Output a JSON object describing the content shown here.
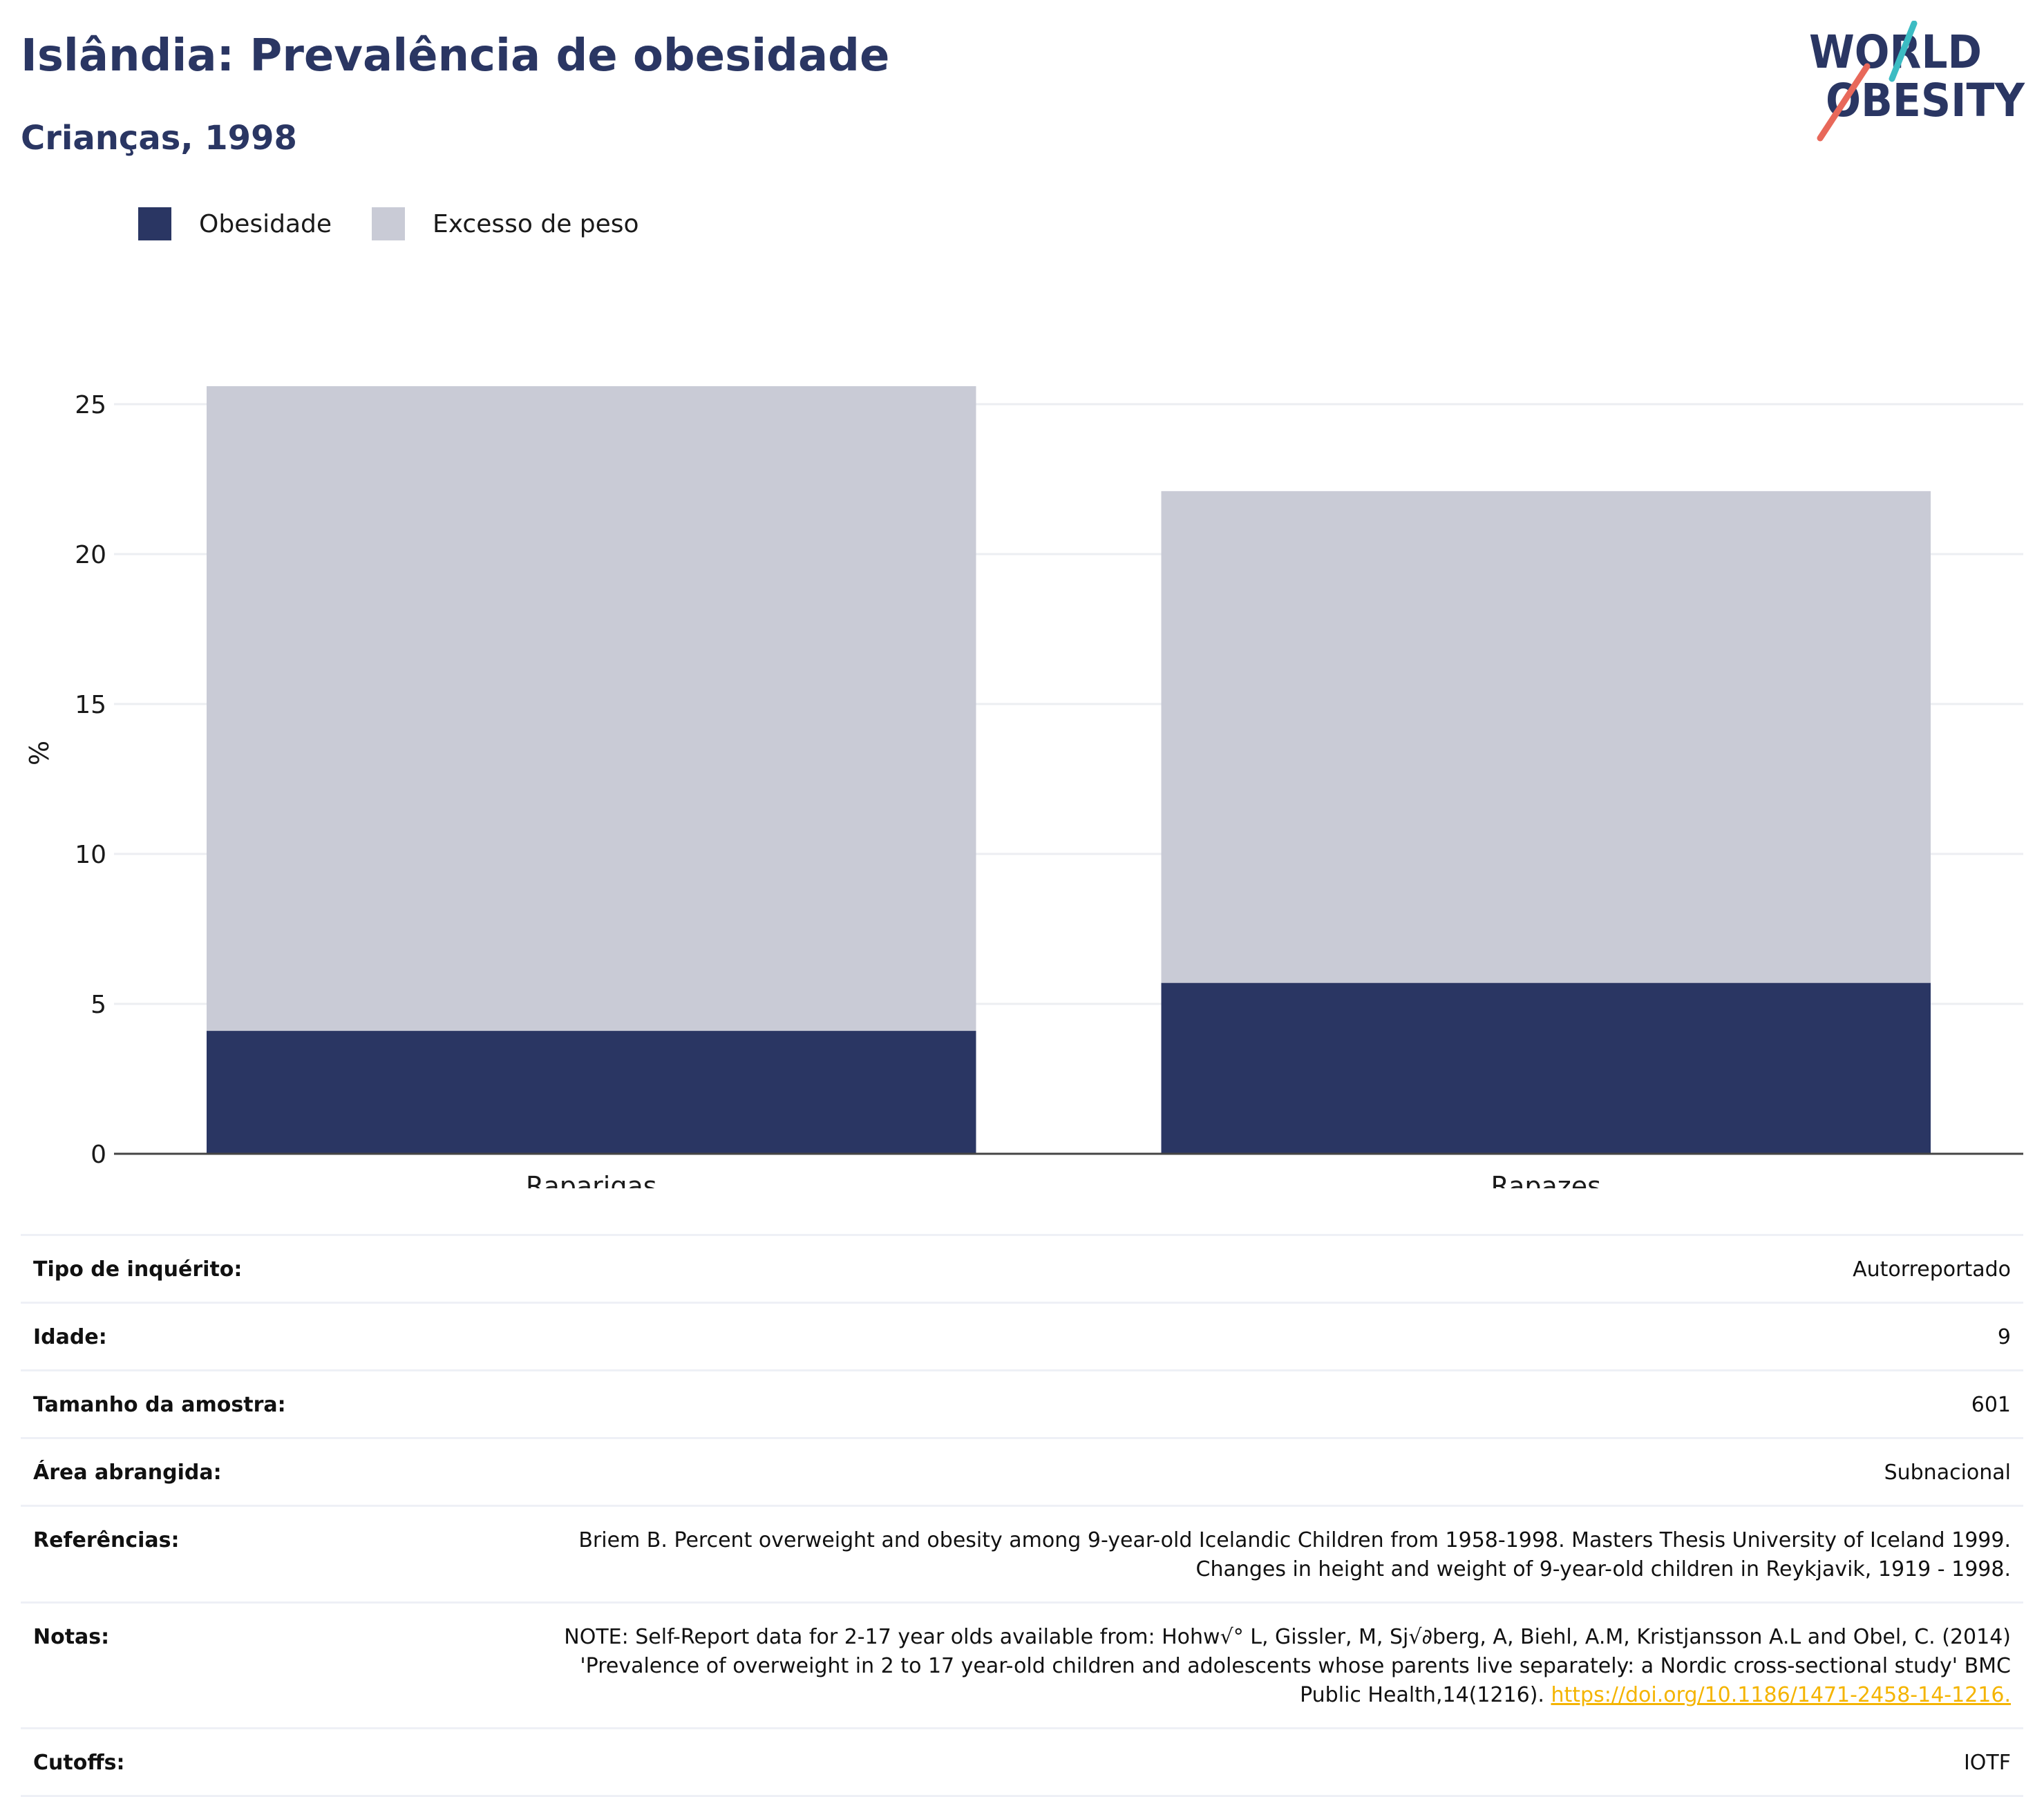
{
  "header": {
    "title": "Islândia: Prevalência de obesidade",
    "subtitle": "Crianças, 1998"
  },
  "logo": {
    "line1": "WORLD",
    "line2": "OBESITY"
  },
  "colors": {
    "obesity": "#2a3663",
    "overweight": "#c9cbd6",
    "title": "#2a3663",
    "link": "#f4b400",
    "logo_teal": "#3cbcc3",
    "logo_coral": "#e8685a"
  },
  "chart_data": {
    "type": "bar",
    "stacked": true,
    "categories": [
      "Raparigas",
      "Rapazes"
    ],
    "series": [
      {
        "name": "Obesidade",
        "values": [
          4.1,
          5.7
        ],
        "color": "#2a3663"
      },
      {
        "name": "Excesso de peso",
        "values": [
          21.5,
          16.4
        ],
        "color": "#c9cbd6"
      }
    ],
    "totals": [
      25.6,
      22.1
    ],
    "ylabel": "%",
    "xlabel": "",
    "ylim": [
      0,
      27
    ],
    "yticks": [
      0,
      5,
      10,
      15,
      20,
      25
    ],
    "grid": true,
    "legend_position": "top-left"
  },
  "info": [
    {
      "key": "Tipo de inquérito:",
      "value": "Autorreportado"
    },
    {
      "key": "Idade:",
      "value": "9"
    },
    {
      "key": "Tamanho da amostra:",
      "value": "601"
    },
    {
      "key": "Área abrangida:",
      "value": "Subnacional"
    },
    {
      "key": "Referências:",
      "value": "Briem B. Percent overweight and obesity among 9-year-old Icelandic Children from 1958-1998. Masters Thesis University of Iceland 1999. Changes in height and weight of 9-year-old children in Reykjavik, 1919 - 1998."
    },
    {
      "key": "Notas:",
      "value": "NOTE: Self-Report data for 2-17 year olds available from: Hohw√° L, Gissler, M, Sj√∂berg, A, Biehl, A.M, Kristjansson A.L and Obel, C. (2014) 'Prevalence of overweight in 2 to 17 year-old children and adolescents whose parents live separately: a Nordic cross-sectional study' BMC Public Health,14(1216). ",
      "link": "https://doi.org/10.1186/1471-2458-14-1216."
    },
    {
      "key": "Cutoffs:",
      "value": "IOTF"
    }
  ]
}
